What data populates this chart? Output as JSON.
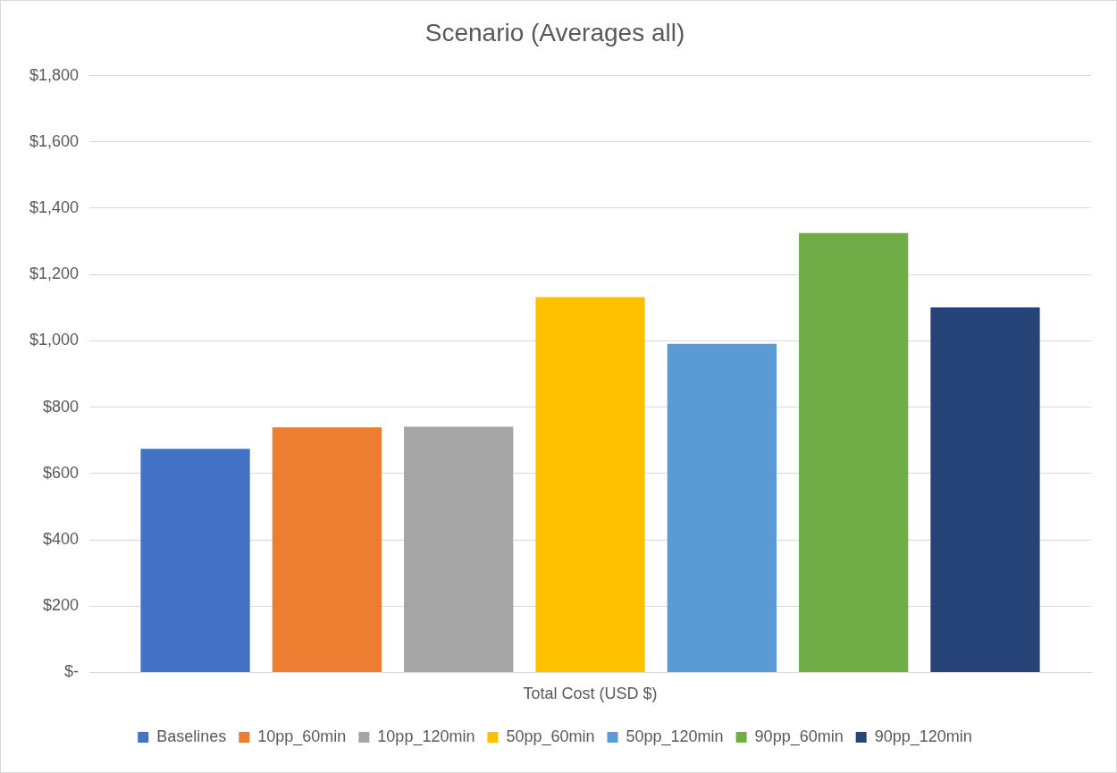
{
  "chart_data": {
    "type": "bar",
    "title": "Scenario (Averages all)",
    "categories": [
      "Total Cost (USD $)"
    ],
    "series": [
      {
        "name": "Baselines",
        "color": "#4472c4",
        "values": [
          674
        ]
      },
      {
        "name": "10pp_60min",
        "color": "#ed7d31",
        "values": [
          739
        ]
      },
      {
        "name": "10pp_120min",
        "color": "#a5a5a5",
        "values": [
          741
        ]
      },
      {
        "name": "50pp_60min",
        "color": "#ffc000",
        "values": [
          1132
        ]
      },
      {
        "name": "50pp_120min",
        "color": "#5b9bd5",
        "values": [
          991
        ]
      },
      {
        "name": "90pp_60min",
        "color": "#70ad47",
        "values": [
          1325
        ]
      },
      {
        "name": "90pp_120min",
        "color": "#264478",
        "values": [
          1101
        ]
      }
    ],
    "ylim": [
      0,
      1800
    ],
    "yticks": [
      {
        "value": 0,
        "label": "$-"
      },
      {
        "value": 200,
        "label": "$200"
      },
      {
        "value": 400,
        "label": "$400"
      },
      {
        "value": 600,
        "label": "$600"
      },
      {
        "value": 800,
        "label": "$800"
      },
      {
        "value": 1000,
        "label": "$1,000"
      },
      {
        "value": 1200,
        "label": "$1,200"
      },
      {
        "value": 1400,
        "label": "$1,400"
      },
      {
        "value": 1600,
        "label": "$1,600"
      },
      {
        "value": 1800,
        "label": "$1,800"
      }
    ],
    "grid": "y",
    "legend": "bottom"
  }
}
